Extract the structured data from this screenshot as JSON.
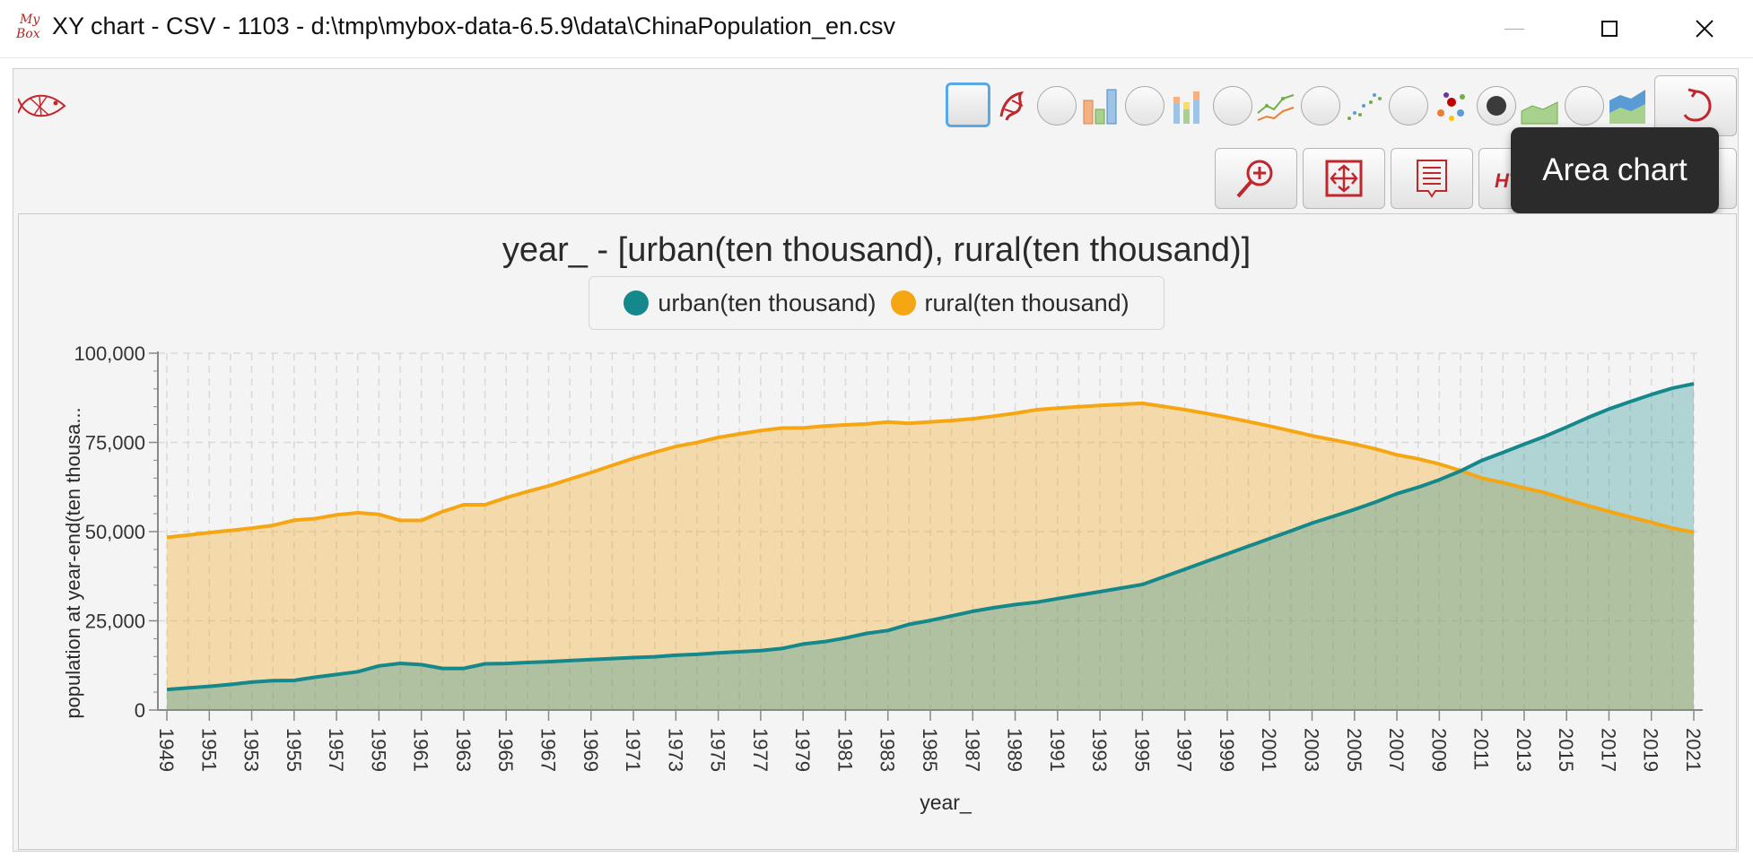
{
  "window": {
    "title": "XY chart - CSV - 1103 - d:\\tmp\\mybox-data-6.5.9\\data\\ChinaPopulation_en.csv",
    "logo_text_top": "My",
    "logo_text_bottom": "Box"
  },
  "toolbar": {
    "chart_types": [
      {
        "id": "bar",
        "icon": "bar-chart-icon",
        "selected": false
      },
      {
        "id": "stacked-bar",
        "icon": "stacked-bar-chart-icon",
        "selected": false
      },
      {
        "id": "line",
        "icon": "line-chart-icon",
        "selected": false
      },
      {
        "id": "scatter",
        "icon": "scatter-chart-icon",
        "selected": false
      },
      {
        "id": "bubble",
        "icon": "bubble-chart-icon",
        "selected": false
      },
      {
        "id": "area",
        "icon": "area-chart-icon",
        "selected": true
      },
      {
        "id": "stacked-area",
        "icon": "stacked-area-chart-icon",
        "selected": false
      }
    ],
    "actions": [
      {
        "id": "zoom",
        "icon": "zoom-in-icon"
      },
      {
        "id": "fit",
        "icon": "fit-size-icon"
      },
      {
        "id": "data",
        "icon": "data-list-icon"
      },
      {
        "id": "html",
        "icon": "html-icon"
      },
      {
        "id": "snapshot",
        "icon": "snapshot-icon"
      },
      {
        "id": "menu",
        "icon": "menu-icon"
      }
    ],
    "tooltip": "Area chart"
  },
  "colors": {
    "urban": "#14888a",
    "urban_fill": "rgba(20,136,138,0.30)",
    "rural": "#f5a612",
    "rural_fill": "rgba(245,166,18,0.32)",
    "accent": "#5aa9e6",
    "brand_red": "#c0272d"
  },
  "chart_data": {
    "type": "area",
    "title": "year_ - [urban(ten thousand), rural(ten thousand)]",
    "xlabel": "year_",
    "ylabel": "population at year-end(ten thousa...",
    "ylim": [
      0,
      100000
    ],
    "yticks": [
      "0",
      "25,000",
      "50,000",
      "75,000",
      "100,000"
    ],
    "ytick_values": [
      0,
      25000,
      50000,
      75000,
      100000
    ],
    "xtick_labels": [
      "1949",
      "1951",
      "1953",
      "1955",
      "1957",
      "1959",
      "1961",
      "1963",
      "1965",
      "1967",
      "1969",
      "1971",
      "1973",
      "1975",
      "1977",
      "1979",
      "1981",
      "1983",
      "1985",
      "1987",
      "1989",
      "1991",
      "1993",
      "1995",
      "1997",
      "1999",
      "2001",
      "2003",
      "2005",
      "2007",
      "2009",
      "2011",
      "2013",
      "2015",
      "2017",
      "2019",
      "2021"
    ],
    "grid": true,
    "legend_position": "top-center",
    "x": [
      1949,
      1950,
      1951,
      1952,
      1953,
      1954,
      1955,
      1956,
      1957,
      1958,
      1959,
      1960,
      1961,
      1962,
      1963,
      1964,
      1965,
      1966,
      1967,
      1968,
      1969,
      1970,
      1971,
      1972,
      1973,
      1974,
      1975,
      1976,
      1977,
      1978,
      1979,
      1980,
      1981,
      1982,
      1983,
      1984,
      1985,
      1986,
      1987,
      1988,
      1989,
      1990,
      1991,
      1992,
      1993,
      1994,
      1995,
      1996,
      1997,
      1998,
      1999,
      2000,
      2001,
      2002,
      2003,
      2004,
      2005,
      2006,
      2007,
      2008,
      2009,
      2010,
      2011,
      2012,
      2013,
      2014,
      2015,
      2016,
      2017,
      2018,
      2019,
      2020,
      2021
    ],
    "series": [
      {
        "name": "urban(ten thousand)",
        "values": [
          5765,
          6169,
          6632,
          7163,
          7826,
          8249,
          8285,
          9185,
          9949,
          10721,
          12371,
          13073,
          12707,
          11659,
          11646,
          12950,
          13045,
          13313,
          13548,
          13838,
          14117,
          14424,
          14711,
          14935,
          15345,
          15595,
          16030,
          16341,
          16669,
          17245,
          18495,
          19140,
          20171,
          21480,
          22274,
          24017,
          25094,
          26366,
          27674,
          28661,
          29540,
          30195,
          31203,
          32175,
          33173,
          34169,
          35174,
          37304,
          39449,
          41608,
          43748,
          45906,
          48064,
          50212,
          52376,
          54283,
          56212,
          58288,
          60633,
          62403,
          64512,
          66978,
          69927,
          72175,
          74502,
          76738,
          79302,
          81924,
          84343,
          86433,
          88426,
          90220,
          91425
        ]
      },
      {
        "name": "rural(ten thousand)",
        "values": [
          48402,
          49027,
          49734,
          50319,
          50970,
          51744,
          53180,
          53643,
          54704,
          55273,
          54836,
          53134,
          53152,
          55636,
          57526,
          57549,
          59493,
          61229,
          62820,
          64696,
          66554,
          68568,
          70520,
          72242,
          73866,
          74986,
          76390,
          77376,
          78305,
          79014,
          79047,
          79565,
          79901,
          80174,
          80734,
          80340,
          80757,
          81141,
          81626,
          82365,
          83164,
          84138,
          84620,
          84996,
          85344,
          85681,
          85947,
          85085,
          84177,
          83153,
          82038,
          80837,
          79563,
          78241,
          76851,
          75705,
          74544,
          73160,
          71496,
          70399,
          68938,
          67113,
          64989,
          63747,
          62224,
          60908,
          59024,
          57308,
          55668,
          54108,
          52582,
          50992,
          49835
        ]
      }
    ]
  }
}
